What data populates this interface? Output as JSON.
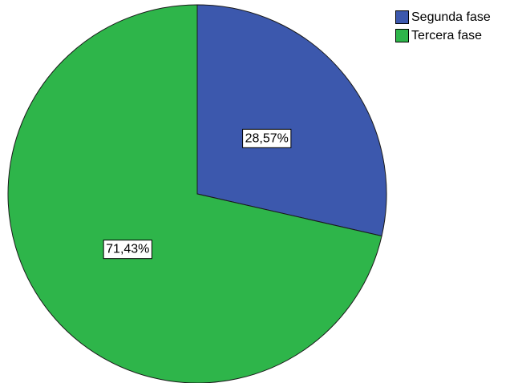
{
  "chart_data": {
    "type": "pie",
    "slices": [
      {
        "label": "Segunda fase",
        "value": 28.57,
        "data_label": "28,57%",
        "color": "#3c58ad"
      },
      {
        "label": "Tercera fase",
        "value": 71.43,
        "data_label": "71,43%",
        "color": "#2eb54a"
      }
    ],
    "start_angle_deg": 0,
    "direction": "clockwise",
    "legend_position": "top-right"
  }
}
